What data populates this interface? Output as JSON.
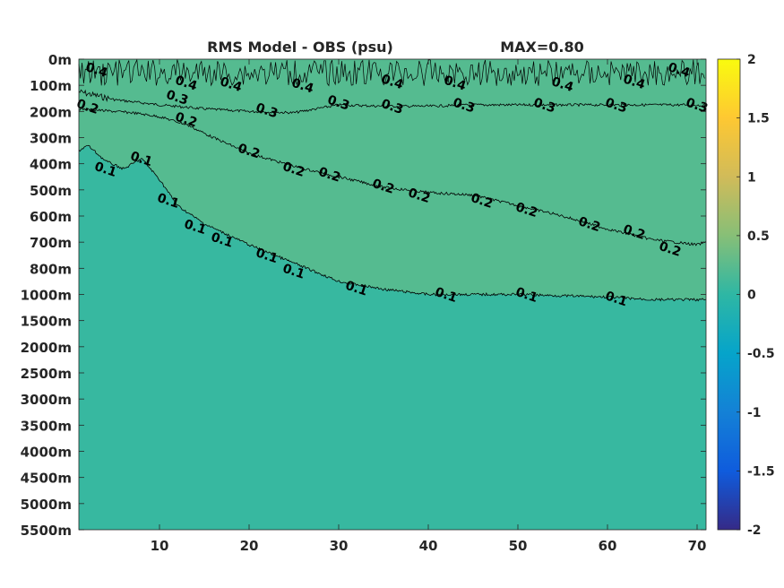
{
  "chart_data": {
    "type": "heatmap",
    "title": "RMS Model - OBS (psu)",
    "max_label": "MAX=0.80",
    "xlabel": "",
    "ylabel": "",
    "xlim": [
      1,
      71
    ],
    "x_ticks": [
      "10",
      "20",
      "30",
      "40",
      "50",
      "60",
      "70"
    ],
    "x_tick_values": [
      10,
      20,
      30,
      40,
      50,
      60,
      70
    ],
    "y_ticks": [
      "0m",
      "100m",
      "200m",
      "300m",
      "400m",
      "500m",
      "600m",
      "700m",
      "800m",
      "1000m",
      "1500m",
      "2000m",
      "2500m",
      "3000m",
      "3500m",
      "4000m",
      "4500m",
      "5000m",
      "5500m"
    ],
    "colorbar": {
      "ticks": [
        "2",
        "1.5",
        "1",
        "0.5",
        "0",
        "-0.5",
        "-1",
        "-1.5",
        "-2"
      ],
      "tick_values": [
        2,
        1.5,
        1,
        0.5,
        0,
        -0.5,
        -1,
        -1.5,
        -2
      ],
      "clim": [
        -2,
        2
      ],
      "colormap": "parula",
      "colors": [
        "#352a87",
        "#0f5cdd",
        "#1481d6",
        "#06a4ca",
        "#2eb7a4",
        "#87bf77",
        "#d1bb59",
        "#fec832",
        "#f9fb0e"
      ]
    },
    "background_value": 0.05,
    "contours": [
      {
        "level": 0.3,
        "label": "0.3",
        "x": [
          1,
          5,
          10,
          15,
          20,
          25,
          30,
          35,
          40,
          45,
          50,
          55,
          60,
          65,
          70,
          71
        ],
        "depth_index": [
          1.25,
          1.55,
          1.75,
          1.9,
          2.0,
          2.05,
          1.75,
          1.8,
          1.8,
          1.75,
          1.75,
          1.75,
          1.75,
          1.75,
          1.75,
          1.8
        ]
      },
      {
        "level": 0.2,
        "label": "0.2",
        "x": [
          1,
          3,
          7,
          10,
          13,
          16,
          20,
          25,
          30,
          35,
          40,
          45,
          50,
          55,
          60,
          65,
          70,
          71
        ],
        "depth_index": [
          1.9,
          1.95,
          2.05,
          2.2,
          2.5,
          3.0,
          3.6,
          4.1,
          4.5,
          4.9,
          5.1,
          5.2,
          5.6,
          6.0,
          6.5,
          6.9,
          7.1,
          7.0
        ]
      },
      {
        "level": 0.1,
        "label": "0.1",
        "x": [
          1,
          2,
          4,
          6,
          8,
          10,
          12,
          15,
          20,
          25,
          30,
          35,
          40,
          50,
          60,
          65,
          70,
          71
        ],
        "depth_index": [
          3.5,
          3.3,
          3.9,
          4.2,
          3.8,
          4.6,
          5.6,
          6.3,
          7.1,
          7.8,
          8.5,
          8.8,
          9.0,
          9.0,
          9.1,
          9.2,
          9.2,
          9.2
        ]
      }
    ],
    "contour_labels": [
      {
        "text": "0.3",
        "x": 12,
        "d": 1.45
      },
      {
        "text": "0.3",
        "x": 22,
        "d": 1.95
      },
      {
        "text": "0.3",
        "x": 30,
        "d": 1.65
      },
      {
        "text": "0.3",
        "x": 36,
        "d": 1.8
      },
      {
        "text": "0.3",
        "x": 44,
        "d": 1.75
      },
      {
        "text": "0.3",
        "x": 53,
        "d": 1.75
      },
      {
        "text": "0.3",
        "x": 61,
        "d": 1.75
      },
      {
        "text": "0.3",
        "x": 70,
        "d": 1.75
      },
      {
        "text": "0.4",
        "x": 13,
        "d": 0.9
      },
      {
        "text": "0.4",
        "x": 18,
        "d": 0.95
      },
      {
        "text": "0.4",
        "x": 26,
        "d": 1.0
      },
      {
        "text": "0.4",
        "x": 36,
        "d": 0.85
      },
      {
        "text": "0.4",
        "x": 43,
        "d": 0.9
      },
      {
        "text": "0.4",
        "x": 55,
        "d": 0.95
      },
      {
        "text": "0.4",
        "x": 63,
        "d": 0.85
      },
      {
        "text": "0.4",
        "x": 68,
        "d": 0.4
      },
      {
        "text": "0.4",
        "x": 3,
        "d": 0.4
      },
      {
        "text": "0.2",
        "x": 2,
        "d": 1.8
      },
      {
        "text": "0.2",
        "x": 13,
        "d": 2.3
      },
      {
        "text": "0.2",
        "x": 20,
        "d": 3.5
      },
      {
        "text": "0.2",
        "x": 25,
        "d": 4.2
      },
      {
        "text": "0.2",
        "x": 29,
        "d": 4.4
      },
      {
        "text": "0.2",
        "x": 35,
        "d": 4.85
      },
      {
        "text": "0.2",
        "x": 39,
        "d": 5.2
      },
      {
        "text": "0.2",
        "x": 46,
        "d": 5.4
      },
      {
        "text": "0.2",
        "x": 51,
        "d": 5.75
      },
      {
        "text": "0.2",
        "x": 58,
        "d": 6.3
      },
      {
        "text": "0.2",
        "x": 63,
        "d": 6.6
      },
      {
        "text": "0.2",
        "x": 67,
        "d": 7.25
      },
      {
        "text": "0.1",
        "x": 4,
        "d": 4.2
      },
      {
        "text": "0.1",
        "x": 8,
        "d": 3.8
      },
      {
        "text": "0.1",
        "x": 11,
        "d": 5.4
      },
      {
        "text": "0.1",
        "x": 14,
        "d": 6.4
      },
      {
        "text": "0.1",
        "x": 17,
        "d": 6.9
      },
      {
        "text": "0.1",
        "x": 22,
        "d": 7.5
      },
      {
        "text": "0.1",
        "x": 25,
        "d": 8.1
      },
      {
        "text": "0.1",
        "x": 32,
        "d": 8.75
      },
      {
        "text": "0.1",
        "x": 42,
        "d": 9.0
      },
      {
        "text": "0.1",
        "x": 51,
        "d": 9.0
      },
      {
        "text": "0.1",
        "x": 61,
        "d": 9.15
      }
    ]
  }
}
